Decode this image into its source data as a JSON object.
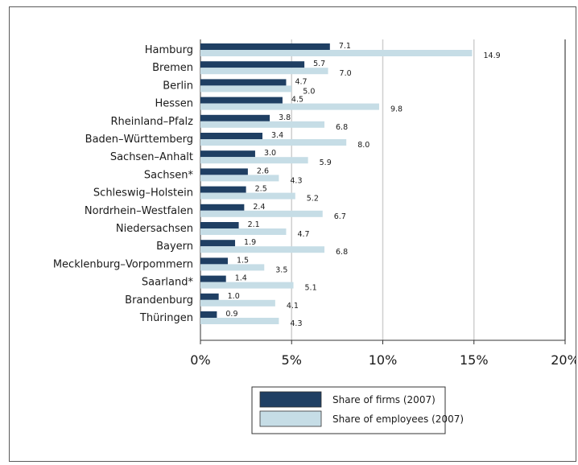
{
  "chart_data": {
    "type": "bar",
    "orientation": "horizontal",
    "categories": [
      "Hamburg",
      "Bremen",
      "Berlin",
      "Hessen",
      "Rheinland–Pfalz",
      "Baden–Württemberg",
      "Sachsen–Anhalt",
      "Sachsen*",
      "Schleswig–Holstein",
      "Nordrhein–Westfalen",
      "Niedersachsen",
      "Bayern",
      "Mecklenburg–Vorpommern",
      "Saarland*",
      "Brandenburg",
      "Thüringen"
    ],
    "series": [
      {
        "name": "Share of firms (2007)",
        "color": "#1f3f63",
        "values": [
          7.1,
          5.7,
          4.7,
          4.5,
          3.8,
          3.4,
          3.0,
          2.6,
          2.5,
          2.4,
          2.1,
          1.9,
          1.5,
          1.4,
          1.0,
          0.9
        ]
      },
      {
        "name": "Share of employees (2007)",
        "color": "#c6dde6",
        "values": [
          14.9,
          7.0,
          5.0,
          9.8,
          6.8,
          8.0,
          5.9,
          4.3,
          5.2,
          6.7,
          4.7,
          6.8,
          3.5,
          5.1,
          4.1,
          4.3
        ]
      }
    ],
    "value_labels": [
      [
        "7.1",
        "5.7",
        "4.7",
        "4.5",
        "3.8",
        "3.4",
        "3.0",
        "2.6",
        "2.5",
        "2.4",
        "2.1",
        "1.9",
        "1.5",
        "1.4",
        "1.0",
        "0.9"
      ],
      [
        "14.9",
        "7.0",
        "5.0",
        "9.8",
        "6.8",
        "8.0",
        "5.9",
        "4.3",
        "5.2",
        "6.7",
        "4.7",
        "6.8",
        "3.5",
        "5.1",
        "4.1",
        "4.3"
      ]
    ],
    "xlim": [
      0,
      20
    ],
    "xticks": [
      0,
      5,
      10,
      15,
      20
    ],
    "xtick_labels": [
      "0%",
      "5%",
      "10%",
      "15%",
      "20%"
    ],
    "grid": "vertical",
    "legend_position": "bottom"
  }
}
